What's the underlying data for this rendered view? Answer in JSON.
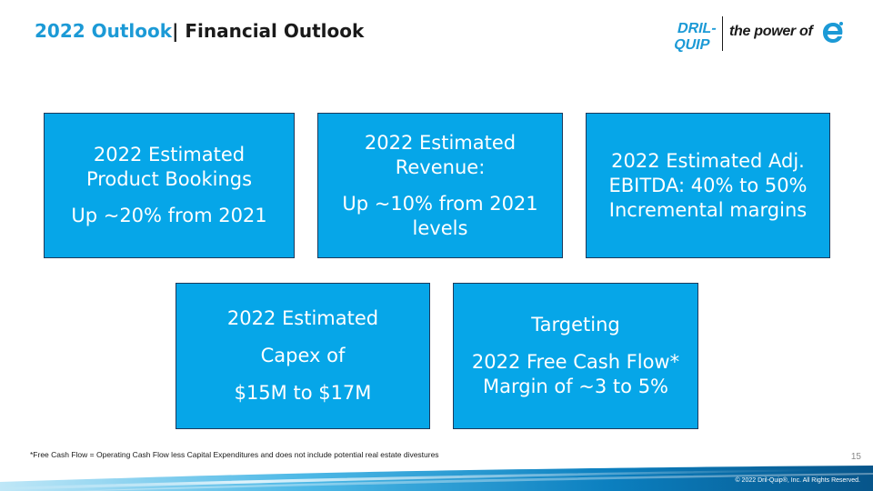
{
  "header": {
    "title_accent": "2022 Outlook",
    "title_rest": "| Financial Outlook"
  },
  "logo": {
    "brand_line1": "DRIL-",
    "brand_line2": "QUIP",
    "tagline": "the power of"
  },
  "boxes": [
    {
      "lines": [
        "2022 Estimated",
        "Product Bookings"
      ],
      "detail": [
        "Up ~20% from 2021"
      ]
    },
    {
      "lines": [
        "2022 Estimated",
        "Revenue:"
      ],
      "detail": [
        "Up ~10% from 2021",
        "levels"
      ]
    },
    {
      "lines": [
        "2022 Estimated Adj.",
        "EBITDA: 40% to 50%",
        "Incremental margins"
      ]
    },
    {
      "lines": [
        "2022 Estimated",
        "Capex of",
        "$15M to $17M"
      ]
    },
    {
      "lines": [
        "Targeting",
        "2022 Free Cash Flow*",
        "Margin of ~3 to 5%"
      ]
    }
  ],
  "footer": {
    "footnote": "*Free Cash Flow = Operating Cash Flow less Capital Expenditures and does not include potential real estate divestures",
    "page_number": "15",
    "copyright": "© 2022 Dril-Quip®, Inc. All Rights Reserved."
  },
  "colors": {
    "accent": "#1c9ad6",
    "box_fill": "#06a6e8",
    "box_border": "#1d3a5c",
    "band_dark": "#0a5d8c"
  }
}
